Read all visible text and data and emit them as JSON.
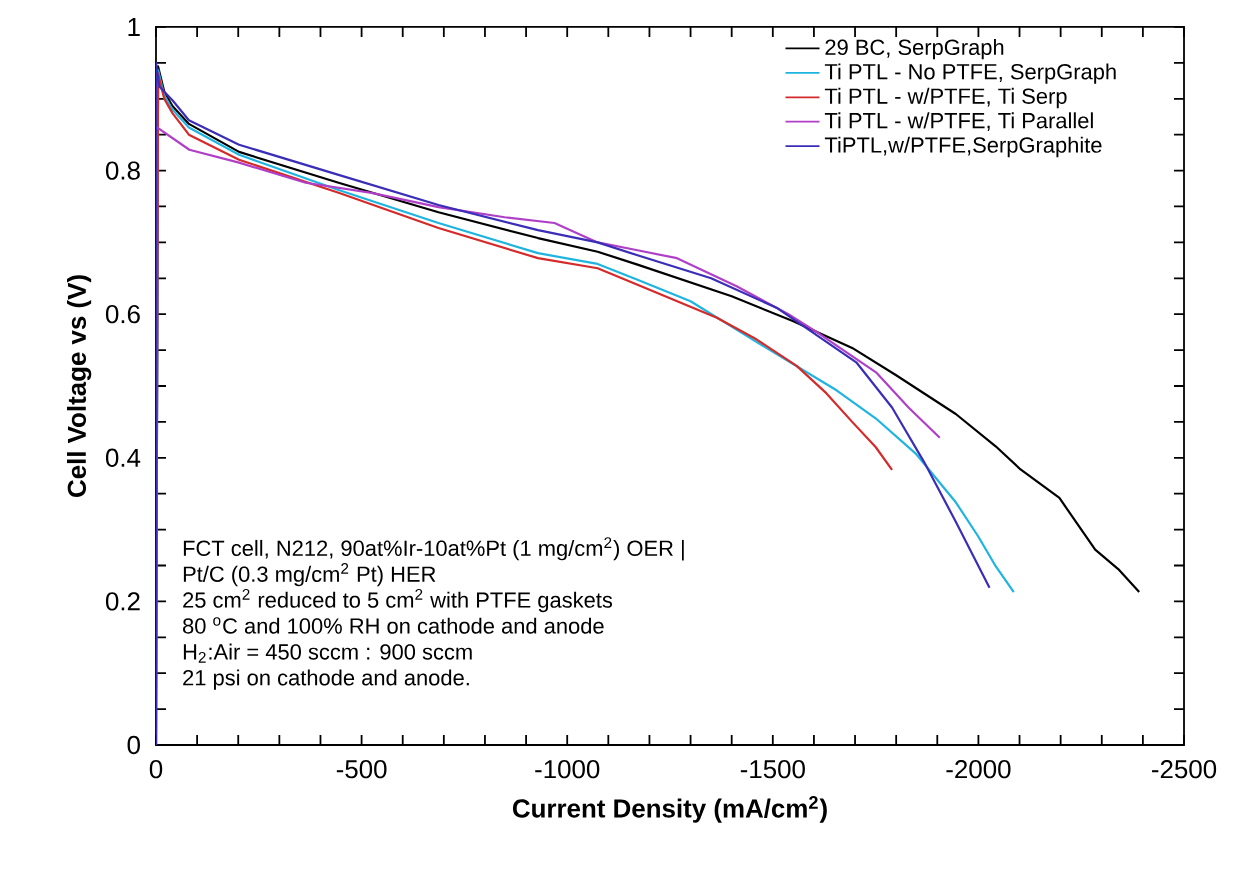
{
  "chart_data": {
    "type": "line",
    "xlabel": "Current Density (mA/cm$^{2}$)",
    "ylabel": "Cell Voltage vs (V)",
    "xlim": [
      0,
      -2500
    ],
    "ylim": [
      0,
      1
    ],
    "xticks": [
      0,
      -500,
      -1000,
      -1500,
      -2000,
      -2500
    ],
    "yticks": [
      0,
      0.2,
      0.4,
      0.6,
      0.8,
      1
    ],
    "legend": "top right",
    "annotations": [
      "FCT cell, N212, 90at%Ir-10at%Pt (1 mg/cm$^{2}$) OER |",
      "Pt/C (0.3 mg/cm$^{2}$ Pt) HER",
      "25 cm$^{2}$ reduced to 5 cm$^{2}$ with PTFE gaskets",
      "80 $^{o}$C and 100% RH on cathode and anode",
      "H$_{2}$:Air = 450 sccm : 900 sccm",
      "21 psi on cathode and anode."
    ],
    "series": [
      {
        "name": "29 BC, SerpGraph",
        "color": "#000000",
        "x": [
          0,
          -5,
          -20,
          -40,
          -80,
          -202,
          -444,
          -687,
          -929,
          -1074,
          -1171,
          -1400,
          -1550,
          -1693,
          -1800,
          -1945,
          -2042,
          -2100,
          -2197,
          -2284,
          -2340,
          -2391
        ],
        "values": [
          0,
          0.945,
          0.91,
          0.89,
          0.865,
          0.826,
          0.783,
          0.742,
          0.706,
          0.687,
          0.669,
          0.625,
          0.59,
          0.553,
          0.515,
          0.461,
          0.416,
          0.385,
          0.344,
          0.272,
          0.245,
          0.213
        ]
      },
      {
        "name": "Ti PTL - No PTFE, SerpGraph",
        "color": "#1fb4e0",
        "x": [
          0,
          -5,
          -20,
          -40,
          -80,
          -202,
          -444,
          -687,
          -929,
          -1074,
          -1171,
          -1300,
          -1461,
          -1655,
          -1750,
          -1849,
          -1945,
          -2000,
          -2042,
          -2086
        ],
        "values": [
          0,
          0.94,
          0.905,
          0.885,
          0.86,
          0.822,
          0.773,
          0.727,
          0.685,
          0.67,
          0.648,
          0.618,
          0.561,
          0.494,
          0.455,
          0.405,
          0.338,
          0.29,
          0.249,
          0.213
        ]
      },
      {
        "name": "Ti PTL - w/PTFE, Ti Serp",
        "color": "#d42a2a",
        "x": [
          0,
          -5,
          -20,
          -40,
          -80,
          -202,
          -444,
          -687,
          -929,
          -1074,
          -1171,
          -1364,
          -1460,
          -1558,
          -1630,
          -1693,
          -1750,
          -1790
        ],
        "values": [
          0,
          0.935,
          0.9,
          0.88,
          0.85,
          0.815,
          0.769,
          0.72,
          0.678,
          0.664,
          0.641,
          0.595,
          0.565,
          0.528,
          0.49,
          0.45,
          0.415,
          0.383
        ]
      },
      {
        "name": "Ti PTL - w/PTFE, Ti Parallel",
        "color": "#b03fc8",
        "x": [
          0,
          -81,
          -202,
          -364,
          -524,
          -687,
          -848,
          -969,
          -1074,
          -1171,
          -1267,
          -1412,
          -1538,
          -1615,
          -1751,
          -1830,
          -1906
        ],
        "values": [
          0.861,
          0.829,
          0.811,
          0.783,
          0.769,
          0.749,
          0.735,
          0.727,
          0.7,
          0.689,
          0.678,
          0.639,
          0.6,
          0.572,
          0.519,
          0.47,
          0.428
        ]
      },
      {
        "name": "TiPTL,w/PTFE,SerpGraphite",
        "color": "#3a2db8",
        "x": [
          0,
          0,
          -8,
          -40,
          -80,
          -202,
          -444,
          -687,
          -929,
          -1074,
          -1171,
          -1350,
          -1509,
          -1703,
          -1790,
          -1868,
          -1945,
          -2027
        ],
        "values": [
          0,
          0.95,
          0.917,
          0.898,
          0.87,
          0.836,
          0.794,
          0.752,
          0.717,
          0.7,
          0.682,
          0.65,
          0.609,
          0.533,
          0.47,
          0.394,
          0.311,
          0.219
        ]
      }
    ]
  }
}
